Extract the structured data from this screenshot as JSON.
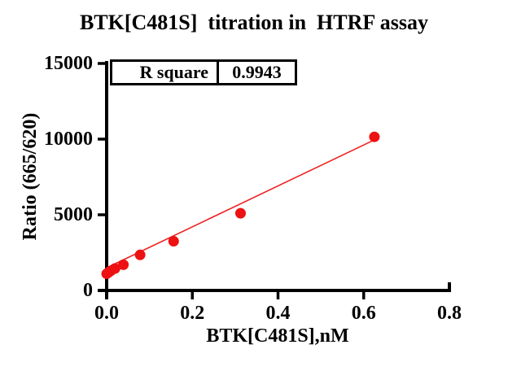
{
  "window": {
    "background": "#ffffff"
  },
  "colors": {
    "points": "#ee1111",
    "trendline": "#ee2222",
    "axis": "#000000"
  },
  "inset_table": {
    "r_square_label": "R square",
    "r_square_value": "0.9943"
  },
  "chart_data": {
    "type": "scatter",
    "title": "BTK[C481S]  titration in  HTRF assay",
    "xlabel": "BTK[C481S],nM",
    "ylabel": "Ratio (665/620)",
    "xlim": [
      0,
      0.8
    ],
    "ylim": [
      0,
      15000
    ],
    "x_tick_values": [
      0,
      0.2,
      0.4,
      0.6,
      0.8
    ],
    "x_tick_labels": [
      "0.0",
      "0.2",
      "0.4",
      "0.6",
      "0.8"
    ],
    "y_tick_values": [
      0,
      5000,
      10000,
      15000
    ],
    "y_tick_labels": [
      "0",
      "5000",
      "10000",
      "15000"
    ],
    "grid": false,
    "legend": "none",
    "series": [
      {
        "name": "BTK[C481S] titration",
        "marker": "circle",
        "color": "#ee1111",
        "x": [
          0.0,
          0.0049,
          0.0098,
          0.0195,
          0.0391,
          0.0781,
          0.1563,
          0.3125,
          0.625
        ],
        "y": [
          1100,
          1200,
          1300,
          1450,
          1700,
          2350,
          3250,
          5100,
          10150
        ]
      }
    ],
    "trendline": {
      "color": "#ee2222",
      "x": [
        0.0,
        0.625
      ],
      "y": [
        1500,
        9950
      ]
    },
    "fit": {
      "r_square": "0.9943"
    }
  }
}
